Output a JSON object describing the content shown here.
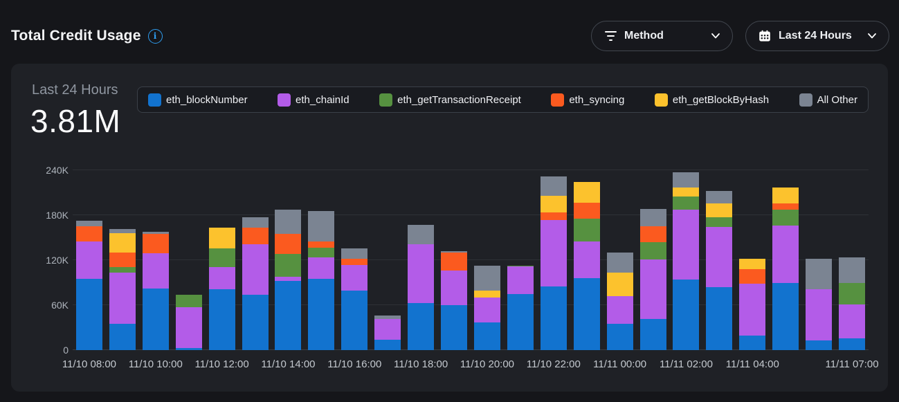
{
  "header": {
    "title": "Total Credit Usage",
    "method_dropdown_label": "Method",
    "time_range_dropdown_label": "Last 24 Hours"
  },
  "panel": {
    "period_label": "Last 24 Hours",
    "total": "3.81M"
  },
  "chart_data": {
    "type": "bar",
    "stacked": true,
    "bar_count": 24,
    "unit": "credits",
    "ylim_k": [
      0,
      240
    ],
    "grid": true,
    "legend_position": "top",
    "y_ticks": [
      {
        "label": "0",
        "value_k": 0
      },
      {
        "label": "60K",
        "value_k": 60
      },
      {
        "label": "120K",
        "value_k": 120
      },
      {
        "label": "180K",
        "value_k": 180
      },
      {
        "label": "240K",
        "value_k": 240
      }
    ],
    "x_ticks": [
      {
        "bar_index": 0,
        "label": "11/10 08:00"
      },
      {
        "bar_index": 2,
        "label": "11/10 10:00"
      },
      {
        "bar_index": 4,
        "label": "11/10 12:00"
      },
      {
        "bar_index": 6,
        "label": "11/10 14:00"
      },
      {
        "bar_index": 8,
        "label": "11/10 16:00"
      },
      {
        "bar_index": 10,
        "label": "11/10 18:00"
      },
      {
        "bar_index": 12,
        "label": "11/10 20:00"
      },
      {
        "bar_index": 14,
        "label": "11/10 22:00"
      },
      {
        "bar_index": 16,
        "label": "11/11 00:00"
      },
      {
        "bar_index": 18,
        "label": "11/11 02:00"
      },
      {
        "bar_index": 20,
        "label": "11/11 04:00"
      },
      {
        "bar_index": 23,
        "label": "11/11 07:00"
      }
    ],
    "series": [
      {
        "name": "eth_blockNumber",
        "color": "#1273cf",
        "values_k": [
          95,
          35,
          82,
          3,
          81,
          74,
          92,
          95,
          79,
          14,
          63,
          60,
          37,
          75,
          85,
          96,
          35,
          42,
          94,
          84,
          19,
          90,
          13,
          16
        ]
      },
      {
        "name": "eth_chainId",
        "color": "#b35ce8",
        "values_k": [
          50,
          68,
          47,
          54,
          30,
          67,
          6,
          29,
          35,
          28,
          78,
          46,
          33,
          37,
          89,
          49,
          37,
          79,
          93,
          80,
          70,
          76,
          68,
          45
        ]
      },
      {
        "name": "eth_getTransactionReceipt",
        "color": "#569140",
        "values_k": [
          0,
          8,
          0,
          17,
          25,
          0,
          30,
          13,
          0,
          0,
          0,
          0,
          0,
          1,
          0,
          30,
          0,
          23,
          18,
          13,
          0,
          21,
          0,
          29
        ]
      },
      {
        "name": "eth_syncing",
        "color": "#fb5a1f",
        "values_k": [
          20,
          19,
          26,
          0,
          0,
          22,
          27,
          8,
          8,
          0,
          0,
          24,
          0,
          0,
          10,
          22,
          0,
          21,
          0,
          0,
          19,
          9,
          0,
          0
        ]
      },
      {
        "name": "eth_getBlockByHash",
        "color": "#fcc22d",
        "values_k": [
          0,
          26,
          0,
          0,
          27,
          0,
          0,
          0,
          0,
          0,
          0,
          0,
          9,
          0,
          22,
          27,
          31,
          0,
          12,
          19,
          14,
          21,
          0,
          0
        ]
      },
      {
        "name": "All Other",
        "color": "#7b8492",
        "values_k": [
          8,
          6,
          3,
          0,
          0,
          14,
          32,
          41,
          14,
          4,
          26,
          2,
          34,
          0,
          26,
          0,
          27,
          23,
          20,
          16,
          0,
          0,
          41,
          34
        ]
      }
    ]
  }
}
